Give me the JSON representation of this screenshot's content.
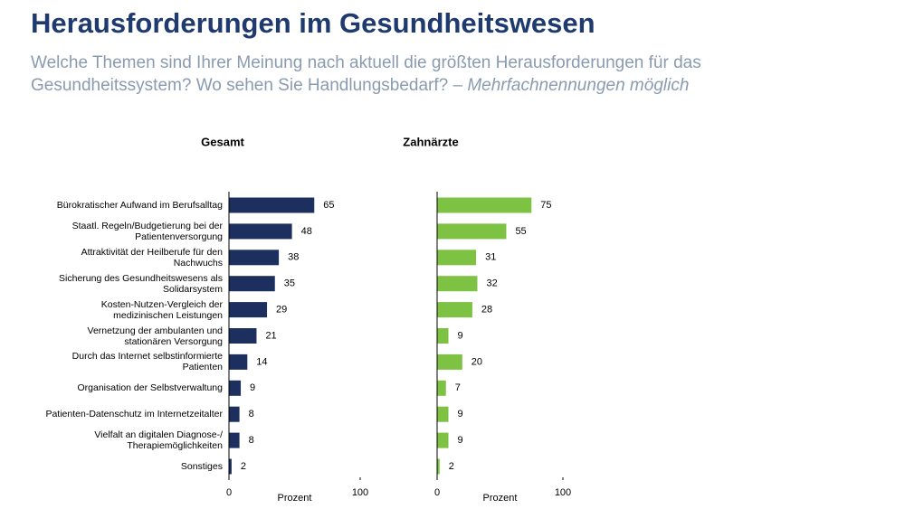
{
  "title": "Herausforderungen im Gesundheitswesen",
  "subtitle": "Welche Themen sind Ihrer Meinung nach aktuell die größten Herausforderungen für das Gesundheitssystem? Wo sehen Sie Handlungsbedarf? –",
  "subtitle_note": "Mehrfachnennungen möglich",
  "chart_data": [
    {
      "type": "hbar",
      "title": "Gesamt",
      "categories": [
        "Bürokratischer Aufwand im Berufsalltag",
        "Staatl. Regeln/Budgetierung bei der Patientenversorgung",
        "Attraktivität der Heilberufe für den Nachwuchs",
        "Sicherung des Gesundheitswesens als Solidarsystem",
        "Kosten-Nutzen-Vergleich der medizinischen Leistungen",
        "Vernetzung der ambulanten und stationären Versorgung",
        "Durch das Internet selbstinformierte Patienten",
        "Organisation der Selbstverwaltung",
        "Patienten-Datenschutz im Internetzeitalter",
        "Vielfalt an digitalen Diagnose-/ Therapiemöglichkeiten",
        "Sonstiges"
      ],
      "values": [
        65,
        48,
        38,
        35,
        29,
        21,
        14,
        9,
        8,
        8,
        2
      ],
      "color": "#1c2f5e",
      "xlim": [
        0,
        100
      ],
      "xticks": [
        0,
        100
      ],
      "xlabel": "Prozent"
    },
    {
      "type": "hbar",
      "title": "Zahnärzte",
      "values": [
        75,
        55,
        31,
        32,
        28,
        9,
        20,
        7,
        9,
        9,
        2
      ],
      "color": "#7dc242",
      "xlim": [
        0,
        100
      ],
      "xticks": [
        0,
        100
      ],
      "xlabel": "Prozent"
    }
  ]
}
